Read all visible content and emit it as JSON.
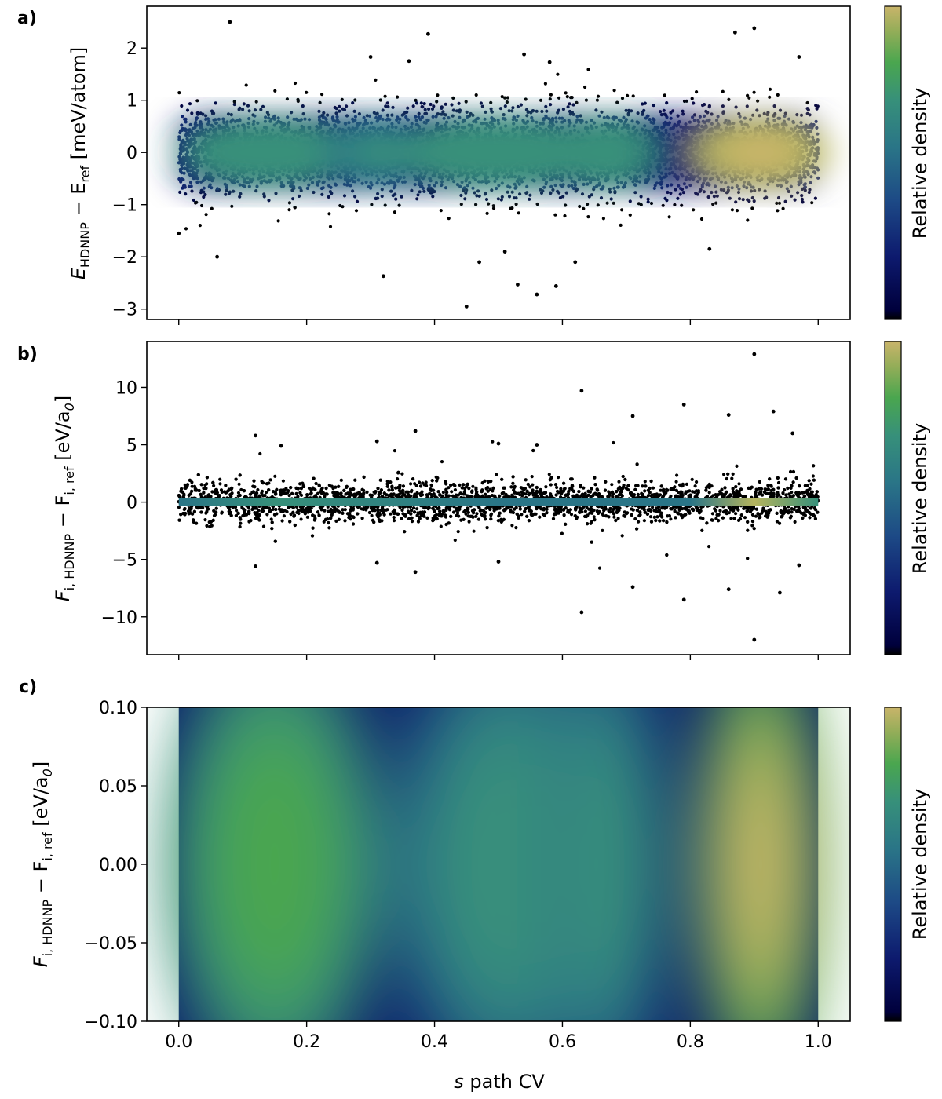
{
  "figure": {
    "colorbar_label": "Relative density",
    "colormap": [
      "#00003c",
      "#0d1a6e",
      "#1d4a86",
      "#2a7587",
      "#37907a",
      "#4aa64f",
      "#b5b45e",
      "#c9b46a"
    ],
    "point_color": "#000000"
  },
  "chart_data": [
    {
      "type": "scatter",
      "panel_label": "a)",
      "title": "",
      "xlabel": "",
      "ylabel": "E_HDNNP − E_ref [meV/atom]",
      "ylabel_main": "E",
      "ylabel_sub1": "HDNNP",
      "ylabel_mid": " − E",
      "ylabel_sub2": "ref",
      "ylabel_unit": " [meV/atom]",
      "xlim": [
        -0.05,
        1.05
      ],
      "ylim": [
        -3.2,
        2.8
      ],
      "yticks": [
        2,
        1,
        0,
        -1,
        -2,
        -3
      ],
      "ytick_labels": [
        "2",
        "1",
        "0",
        "−1",
        "−2",
        "−3"
      ],
      "xticks": [
        0.0,
        0.2,
        0.4,
        0.6,
        0.8,
        1.0
      ],
      "density_centers": [
        {
          "s": 0.14,
          "peak": 0.55,
          "spread_s": 0.09,
          "spread_y": 0.28
        },
        {
          "s": 0.31,
          "peak": 0.45,
          "spread_s": 0.05,
          "spread_y": 0.3
        },
        {
          "s": 0.5,
          "peak": 0.5,
          "spread_s": 0.1,
          "spread_y": 0.3
        },
        {
          "s": 0.67,
          "peak": 0.5,
          "spread_s": 0.05,
          "spread_y": 0.3
        },
        {
          "s": 0.91,
          "peak": 1.0,
          "spread_s": 0.07,
          "spread_y": 0.3
        }
      ],
      "outliers": [
        {
          "s": 0.08,
          "y": 2.5
        },
        {
          "s": 0.39,
          "y": 2.27
        },
        {
          "s": 0.3,
          "y": 1.83
        },
        {
          "s": 0.36,
          "y": 1.75
        },
        {
          "s": 0.54,
          "y": 1.88
        },
        {
          "s": 0.58,
          "y": 1.73
        },
        {
          "s": 0.87,
          "y": 2.3
        },
        {
          "s": 0.9,
          "y": 2.38
        },
        {
          "s": 0.97,
          "y": 1.83
        },
        {
          "s": 0.06,
          "y": -2.0
        },
        {
          "s": 0.32,
          "y": -2.37
        },
        {
          "s": 0.45,
          "y": -2.95
        },
        {
          "s": 0.53,
          "y": -2.53
        },
        {
          "s": 0.56,
          "y": -2.72
        },
        {
          "s": 0.59,
          "y": -2.56
        },
        {
          "s": 0.62,
          "y": -2.1
        },
        {
          "s": 0.83,
          "y": -1.85
        },
        {
          "s": 0.0,
          "y": -1.55
        },
        {
          "s": 0.47,
          "y": -2.1
        },
        {
          "s": 0.51,
          "y": -1.9
        }
      ]
    },
    {
      "type": "scatter",
      "panel_label": "b)",
      "title": "",
      "xlabel": "",
      "ylabel": "F_i,HDNNP − F_i,ref [eV/a0]",
      "ylabel_main": "F",
      "ylabel_sub1": "i, HDNNP",
      "ylabel_mid": " − F",
      "ylabel_sub2": "i, ref",
      "ylabel_unit": " [eV/a",
      "ylabel_unit_sub": "0",
      "ylabel_unit_end": "]",
      "xlim": [
        -0.05,
        1.05
      ],
      "ylim": [
        -13.3,
        14.0
      ],
      "yticks": [
        10,
        5,
        0,
        -5,
        -10
      ],
      "ytick_labels": [
        "10",
        "5",
        "0",
        "−5",
        "−10"
      ],
      "xticks": [
        0.0,
        0.2,
        0.4,
        0.6,
        0.8,
        1.0
      ],
      "outliers": [
        {
          "s": 0.9,
          "y": 12.9
        },
        {
          "s": 0.63,
          "y": 9.7
        },
        {
          "s": 0.79,
          "y": 8.5
        },
        {
          "s": 0.71,
          "y": 7.5
        },
        {
          "s": 0.86,
          "y": 7.6
        },
        {
          "s": 0.93,
          "y": 7.9
        },
        {
          "s": 0.37,
          "y": 6.2
        },
        {
          "s": 0.12,
          "y": 5.8
        },
        {
          "s": 0.16,
          "y": 4.9
        },
        {
          "s": 0.31,
          "y": 5.3
        },
        {
          "s": 0.5,
          "y": 5.1
        },
        {
          "s": 0.56,
          "y": 5.0
        },
        {
          "s": 0.96,
          "y": 6.0
        },
        {
          "s": 0.9,
          "y": -12.0
        },
        {
          "s": 0.63,
          "y": -9.6
        },
        {
          "s": 0.79,
          "y": -8.5
        },
        {
          "s": 0.71,
          "y": -7.4
        },
        {
          "s": 0.86,
          "y": -7.6
        },
        {
          "s": 0.94,
          "y": -7.9
        },
        {
          "s": 0.37,
          "y": -6.1
        },
        {
          "s": 0.12,
          "y": -5.6
        },
        {
          "s": 0.31,
          "y": -5.3
        },
        {
          "s": 0.5,
          "y": -5.2
        },
        {
          "s": 0.97,
          "y": -5.5
        }
      ]
    },
    {
      "type": "heatmap",
      "panel_label": "c)",
      "title": "",
      "xlabel": "s path CV",
      "xlabel_italic": "s",
      "xlabel_rest": " path CV",
      "ylabel": "F_i,HDNNP − F_i,ref [eV/a0]",
      "xlim": [
        -0.05,
        1.05
      ],
      "ylim": [
        -0.1,
        0.1
      ],
      "yticks": [
        0.1,
        0.05,
        0.0,
        -0.05,
        -0.1
      ],
      "ytick_labels": [
        "0.10",
        "0.05",
        "0.00",
        "−0.05",
        "−0.10"
      ],
      "xticks": [
        0.0,
        0.2,
        0.4,
        0.6,
        0.8,
        1.0
      ],
      "xtick_labels": [
        "0.0",
        "0.2",
        "0.4",
        "0.6",
        "0.8",
        "1.0"
      ],
      "density_centers": [
        {
          "s": 0.15,
          "peak": 0.55,
          "spread_s": 0.09,
          "spread_y": 0.055
        },
        {
          "s": 0.52,
          "peak": 0.4,
          "spread_s": 0.1,
          "spread_y": 0.055
        },
        {
          "s": 0.67,
          "peak": 0.35,
          "spread_s": 0.05,
          "spread_y": 0.055
        },
        {
          "s": 0.91,
          "peak": 1.0,
          "spread_s": 0.055,
          "spread_y": 0.055
        }
      ]
    }
  ]
}
